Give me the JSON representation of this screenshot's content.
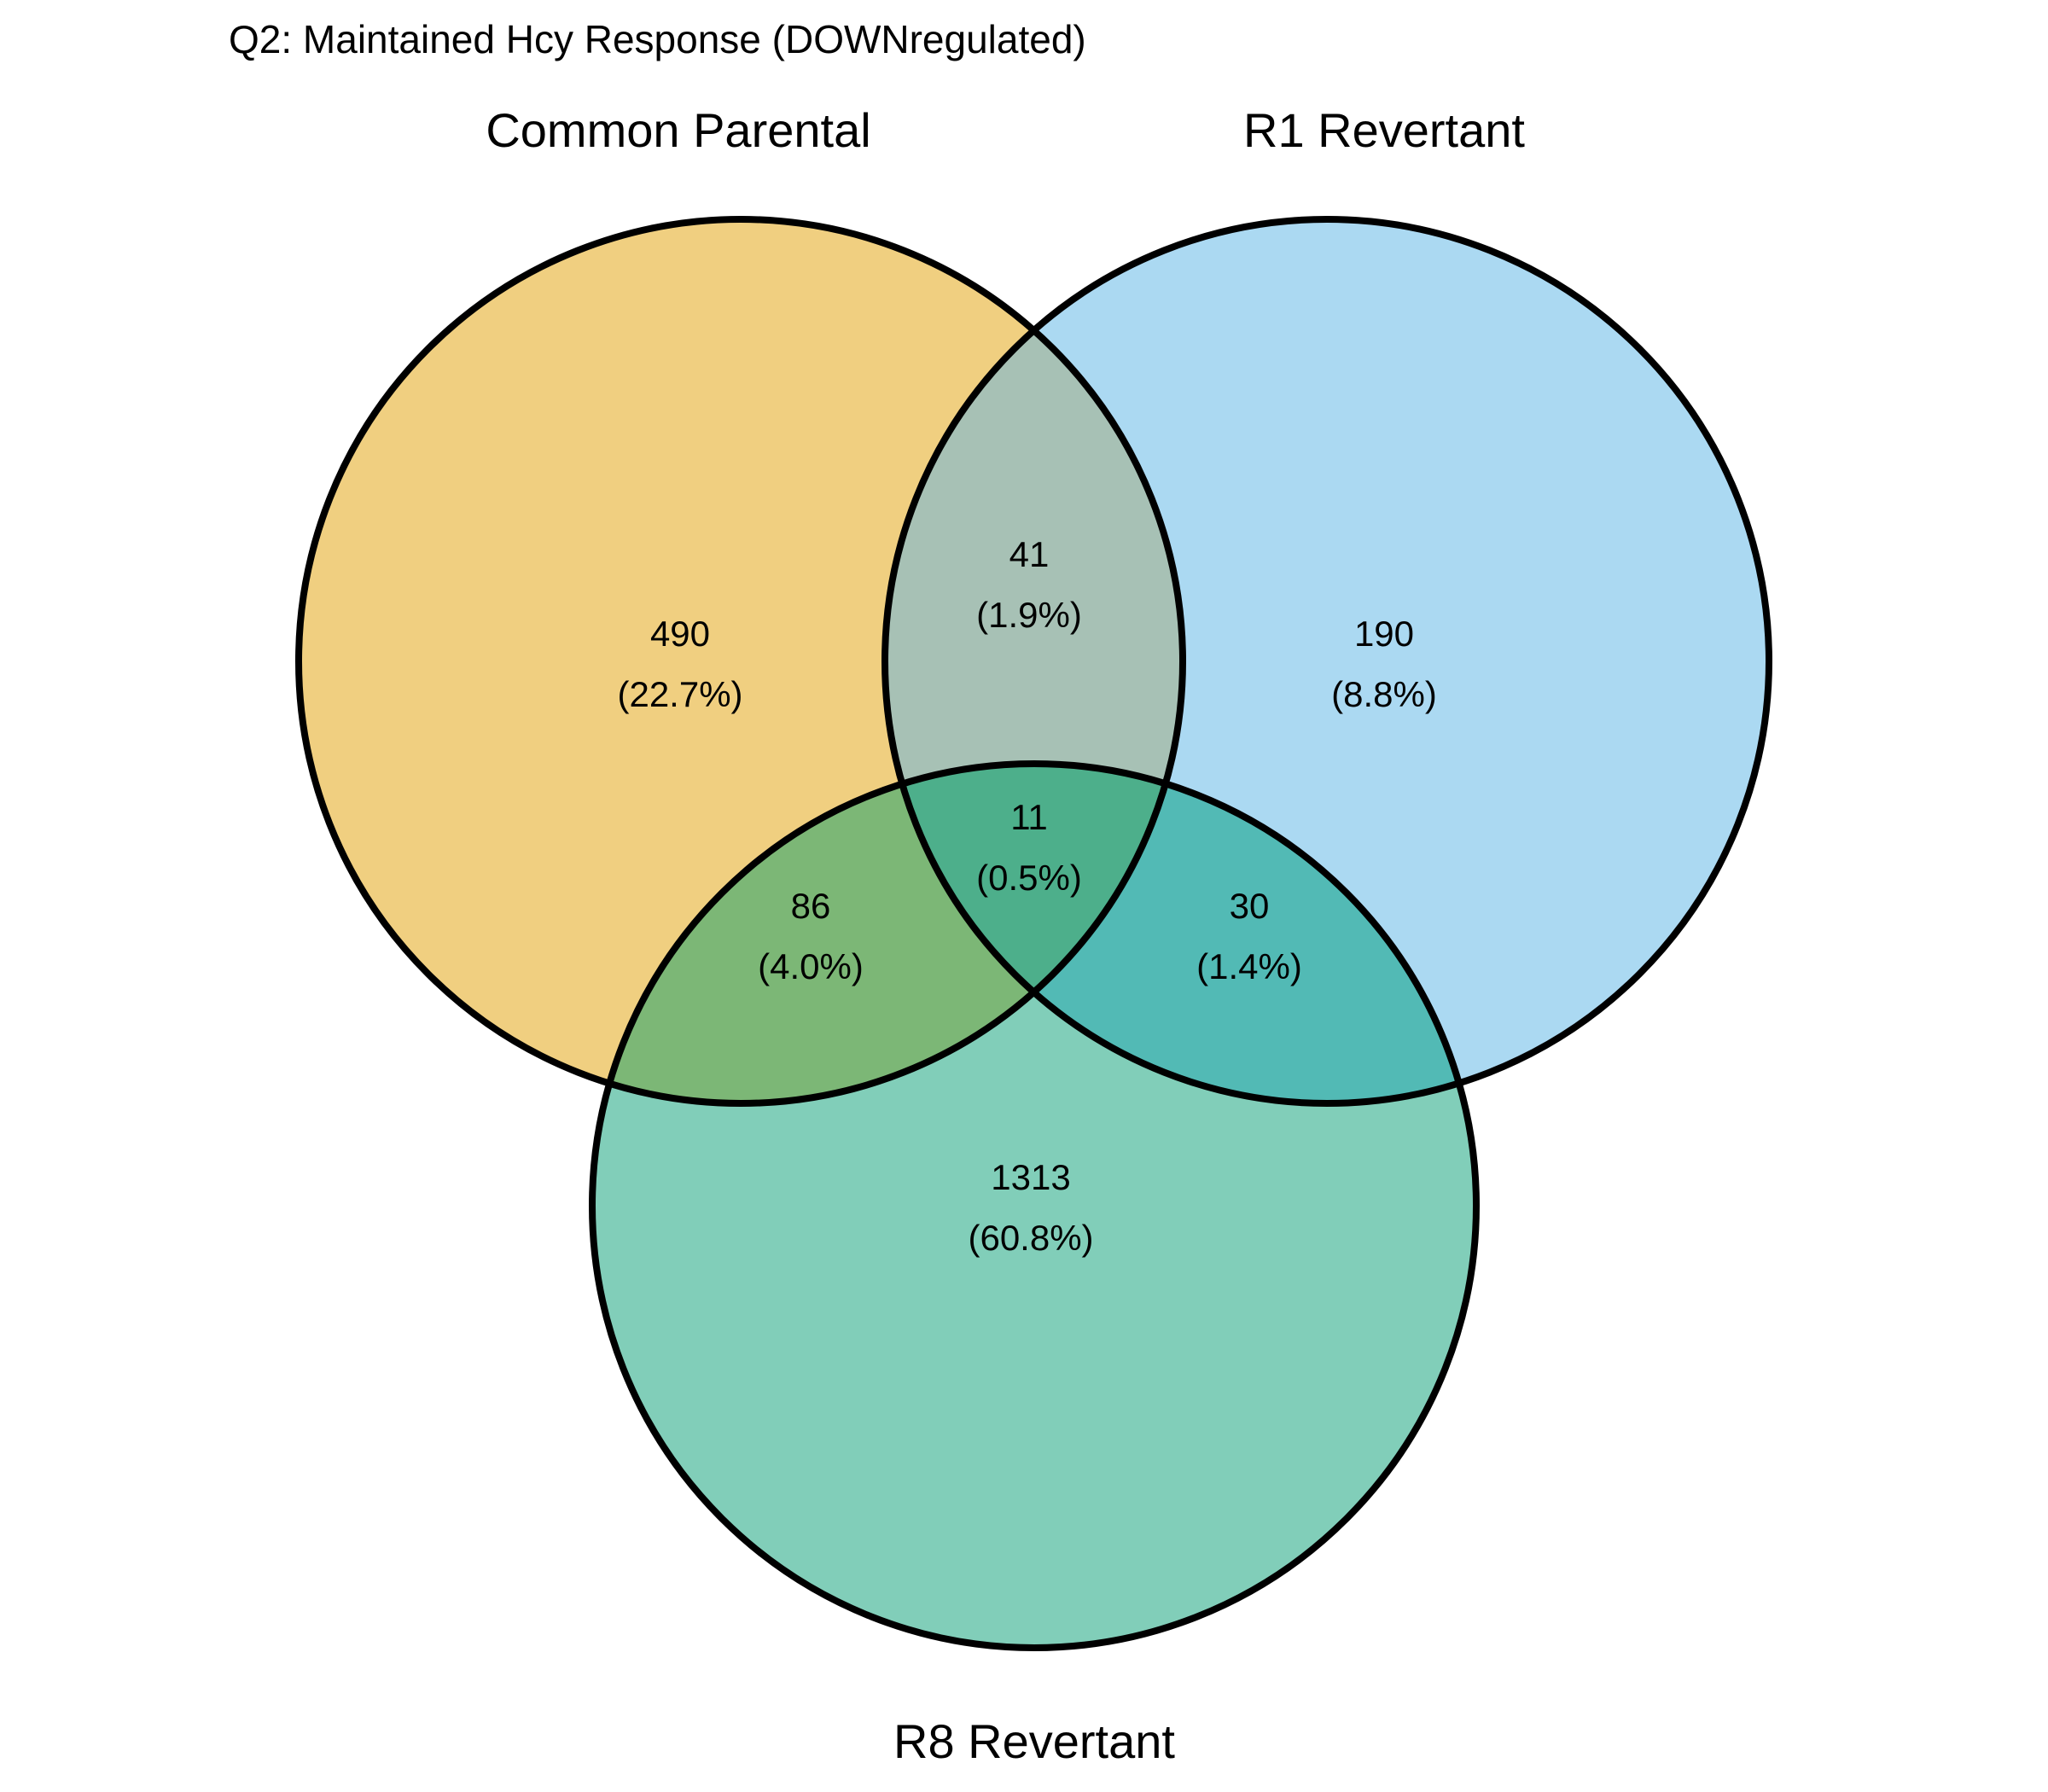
{
  "title": "Q2: Maintained Hcy Response (DOWNregulated)",
  "sets": [
    {
      "id": "A",
      "name": "Common Parental",
      "color": "#F0CF80"
    },
    {
      "id": "B",
      "name": "R1 Revertant",
      "color": "#ABD9F2"
    },
    {
      "id": "C",
      "name": "R8 Revertant",
      "color": "#81CEB9"
    }
  ],
  "overlap_colors": {
    "AB": "#A7C1B5",
    "AC": "#7CB776",
    "BC": "#52BAB5",
    "ABC": "#4DAF8B"
  },
  "regions": {
    "A_only": {
      "count": "490",
      "pct": "(22.7%)"
    },
    "B_only": {
      "count": "190",
      "pct": "(8.8%)"
    },
    "C_only": {
      "count": "1313",
      "pct": "(60.8%)"
    },
    "AB_only": {
      "count": "41",
      "pct": "(1.9%)"
    },
    "AC_only": {
      "count": "86",
      "pct": "(4.0%)"
    },
    "BC_only": {
      "count": "30",
      "pct": "(1.4%)"
    },
    "ABC": {
      "count": "11",
      "pct": "(0.5%)"
    }
  }
}
